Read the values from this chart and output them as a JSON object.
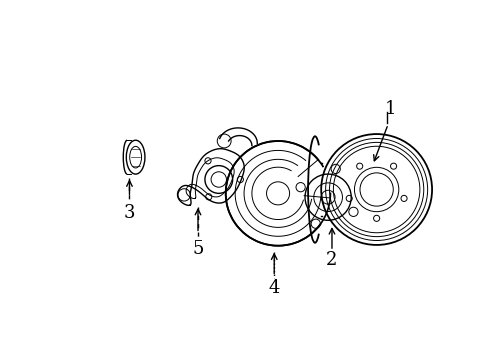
{
  "background_color": "#ffffff",
  "line_color": "#000000",
  "fig_width": 4.9,
  "fig_height": 3.6,
  "dpi": 100,
  "label_fontsize": 13
}
